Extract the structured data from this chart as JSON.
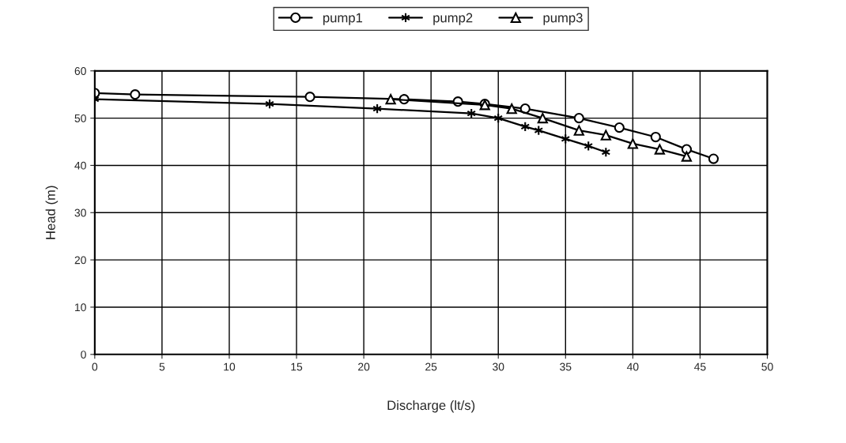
{
  "chart_data": {
    "type": "line",
    "xlabel": "Discharge (lt/s)",
    "ylabel": "Head (m)",
    "xlim": [
      0,
      50
    ],
    "xticks": [
      0,
      5,
      10,
      15,
      20,
      25,
      30,
      35,
      40,
      45,
      50
    ],
    "ylim": [
      0,
      60
    ],
    "yticks": [
      0,
      10,
      20,
      30,
      40,
      50,
      60
    ],
    "grid": true,
    "legend": "top",
    "line_style": "solid",
    "series": [
      {
        "name": "pump1",
        "color": "#000000",
        "marker": "circle",
        "x": [
          0,
          3,
          16,
          23,
          27,
          29,
          32,
          36,
          39,
          41.7,
          44,
          46
        ],
        "values": [
          55.3,
          55,
          54.5,
          54,
          53.5,
          53,
          52,
          50,
          48,
          46,
          43.4,
          41.4
        ]
      },
      {
        "name": "pump2",
        "color": "#000000",
        "marker": "cross",
        "x": [
          0,
          13,
          21,
          28,
          30,
          32,
          33,
          35,
          36.7,
          38
        ],
        "values": [
          54,
          53,
          52,
          51,
          50,
          48.2,
          47.4,
          45.6,
          44.1,
          42.8
        ]
      },
      {
        "name": "pump3",
        "color": "#000000",
        "marker": "triangle",
        "x": [
          22,
          29,
          31,
          33.3,
          36,
          38,
          40,
          42,
          44
        ],
        "values": [
          54,
          52.8,
          52,
          50,
          47.4,
          46.4,
          44.6,
          43.4,
          41.9
        ]
      }
    ]
  }
}
